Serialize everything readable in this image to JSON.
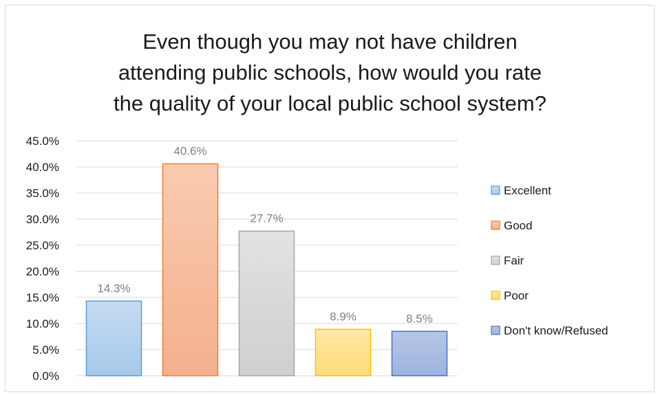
{
  "chart_data": {
    "type": "bar",
    "title": [
      "Even though you may not have children",
      "attending public schools, how would you rate",
      "the quality of your local public school system?"
    ],
    "xlabel": "",
    "ylabel": "",
    "ylim": [
      0,
      45
    ],
    "y_ticks": [
      "0.0%",
      "5.0%",
      "10.0%",
      "15.0%",
      "20.0%",
      "25.0%",
      "30.0%",
      "35.0%",
      "40.0%",
      "45.0%"
    ],
    "grid": true,
    "legend_position": "right",
    "categories": [
      "Excellent",
      "Good",
      "Fair",
      "Poor",
      "Don't know/Refused"
    ],
    "values": [
      14.3,
      40.6,
      27.7,
      8.9,
      8.5
    ],
    "value_labels": [
      "14.3%",
      "40.6%",
      "27.7%",
      "8.9%",
      "8.5%"
    ],
    "colors": [
      {
        "fill_top": "#c5dcf2",
        "fill_bottom": "#a5c8ea",
        "stroke": "#5b9bd5"
      },
      {
        "fill_top": "#f8cbb0",
        "fill_bottom": "#f4b08d",
        "stroke": "#ed7d31"
      },
      {
        "fill_top": "#e2e2e2",
        "fill_bottom": "#cfcfcf",
        "stroke": "#a5a5a5"
      },
      {
        "fill_top": "#ffe9a6",
        "fill_bottom": "#ffdb7a",
        "stroke": "#ffc000"
      },
      {
        "fill_top": "#b6c6e7",
        "fill_bottom": "#9db3de",
        "stroke": "#4472c4"
      }
    ]
  }
}
